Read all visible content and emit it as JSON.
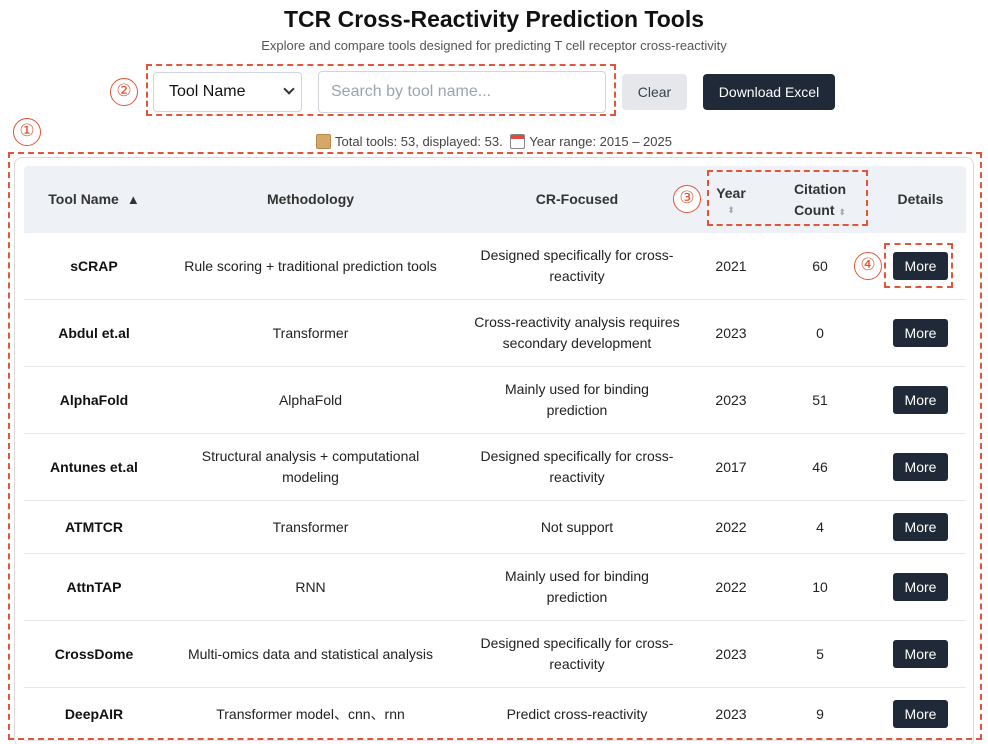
{
  "header": {
    "title": "TCR Cross-Reactivity Prediction Tools",
    "subtitle": "Explore and compare tools designed for predicting T cell receptor cross-reactivity"
  },
  "annotations": {
    "marker_1": "①",
    "marker_2": "②",
    "marker_3": "③",
    "marker_4": "④",
    "color": "#e2553a"
  },
  "controls": {
    "field_select_value": "Tool Name",
    "search_placeholder": "Search by tool name...",
    "clear_label": "Clear",
    "download_label": "Download Excel"
  },
  "stats": {
    "box_icon": "package-icon",
    "calendar_icon": "calendar-icon",
    "text1": "Total tools: 53, displayed: 53.",
    "text2": "Year range: 2015 – 2025"
  },
  "table": {
    "columns": {
      "tool_name": "Tool Name",
      "tool_name_sort": "▲",
      "methodology": "Methodology",
      "cr_focused": "CR-Focused",
      "year": "Year",
      "year_sort": "⬍",
      "citation": "Citation Count",
      "citation_line1": "Citation",
      "citation_line2": "Count",
      "citation_sort": "⬍",
      "details": "Details"
    },
    "more_label": "More",
    "rows": [
      {
        "name": "sCRAP",
        "methodology": "Rule scoring + traditional prediction tools",
        "cr_line1": "Designed specifically for cross-",
        "cr_line2": "reactivity",
        "year": "2021",
        "citations": "60"
      },
      {
        "name": "Abdul et.al",
        "methodology": "Transformer",
        "cr_line1": "Cross-reactivity analysis requires",
        "cr_line2": "secondary development",
        "year": "2023",
        "citations": "0"
      },
      {
        "name": "AlphaFold",
        "methodology": "AlphaFold",
        "cr_line1": "Mainly used for binding",
        "cr_line2": "prediction",
        "year": "2023",
        "citations": "51"
      },
      {
        "name": "Antunes et.al",
        "methodology_line1": "Structural analysis + computational",
        "methodology_line2": "modeling",
        "cr_line1": "Designed specifically for cross-",
        "cr_line2": "reactivity",
        "year": "2017",
        "citations": "46"
      },
      {
        "name": "ATMTCR",
        "methodology": "Transformer",
        "cr_line1": "Not support",
        "cr_line2": "",
        "year": "2022",
        "citations": "4"
      },
      {
        "name": "AttnTAP",
        "methodology": "RNN",
        "cr_line1": "Mainly used for binding",
        "cr_line2": "prediction",
        "year": "2022",
        "citations": "10"
      },
      {
        "name": "CrossDome",
        "methodology": "Multi-omics data and statistical analysis",
        "cr_line1": "Designed specifically for cross-",
        "cr_line2": "reactivity",
        "year": "2023",
        "citations": "5"
      },
      {
        "name": "DeepAIR",
        "methodology": "Transformer model、cnn、rnn",
        "cr_line1": "Predict cross-reactivity",
        "cr_line2": "",
        "year": "2023",
        "citations": "9"
      }
    ]
  }
}
